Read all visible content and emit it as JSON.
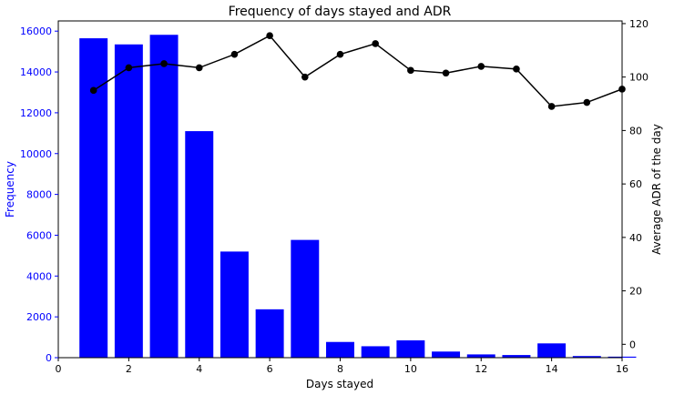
{
  "chart_data": {
    "type": "bar+line",
    "title": "Frequency of days stayed and ADR",
    "xlabel": "Days stayed",
    "xlim": [
      0,
      16
    ],
    "xticks": [
      0,
      2,
      4,
      6,
      8,
      10,
      12,
      14,
      16
    ],
    "left_axis": {
      "label": "Frequency",
      "color": "#0000ff",
      "ylim": [
        0,
        16500
      ],
      "ticks": [
        0,
        2000,
        4000,
        6000,
        8000,
        10000,
        12000,
        14000,
        16000
      ]
    },
    "right_axis": {
      "label": "Average ADR of the day",
      "color": "#000000",
      "ylim": [
        -5,
        121
      ],
      "ticks": [
        0,
        20,
        40,
        60,
        80,
        100,
        120
      ]
    },
    "bars": {
      "color": "#0000ff",
      "x": [
        1,
        2,
        3,
        4,
        5,
        6,
        7,
        8,
        9,
        10,
        11,
        12,
        13,
        14,
        15,
        16
      ],
      "values": [
        15650,
        15350,
        15820,
        11100,
        5200,
        2370,
        5770,
        770,
        560,
        850,
        300,
        160,
        130,
        700,
        80,
        50
      ]
    },
    "line": {
      "color": "#000000",
      "x": [
        1,
        2,
        3,
        4,
        5,
        6,
        7,
        8,
        9,
        10,
        11,
        12,
        13,
        14,
        15,
        16
      ],
      "values": [
        95,
        103.5,
        105,
        103.5,
        108.5,
        115.5,
        100,
        108.5,
        112.5,
        102.5,
        101.5,
        104,
        103,
        89,
        90.5,
        95.5
      ]
    },
    "grid": false
  }
}
